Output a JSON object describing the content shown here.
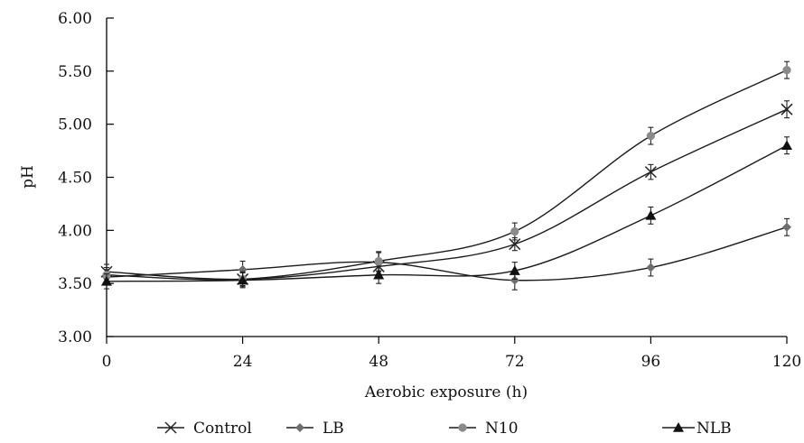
{
  "chart_data": {
    "type": "line",
    "xlabel": "Aerobic exposure (h)",
    "ylabel": "pH",
    "x": [
      0,
      24,
      48,
      72,
      96,
      120
    ],
    "xlim": [
      0,
      120
    ],
    "ylim": [
      3.0,
      6.0
    ],
    "x_ticks": [
      "0",
      "24",
      "48",
      "72",
      "96",
      "120"
    ],
    "y_ticks": [
      "3.00",
      "3.50",
      "4.00",
      "4.50",
      "5.00",
      "5.50",
      "6.00"
    ],
    "grid": false,
    "legend_position": "bottom",
    "series": [
      {
        "name": "Control",
        "marker": "x",
        "color": "#222222",
        "values": [
          3.61,
          3.54,
          3.66,
          3.87,
          4.55,
          5.14
        ],
        "errors": [
          0.07,
          0.06,
          0.07,
          0.06,
          0.07,
          0.08
        ]
      },
      {
        "name": "LB",
        "marker": "diamond",
        "color": "#6e6e6e",
        "values": [
          3.56,
          3.63,
          3.7,
          3.53,
          3.65,
          4.03
        ],
        "errors": [
          0.07,
          0.08,
          0.09,
          0.09,
          0.08,
          0.08
        ]
      },
      {
        "name": "N10",
        "marker": "circle",
        "color": "#8a8a8a",
        "values": [
          3.58,
          3.54,
          3.71,
          3.99,
          4.89,
          5.51
        ],
        "errors": [
          0.07,
          0.07,
          0.09,
          0.08,
          0.08,
          0.08
        ]
      },
      {
        "name": "NLB",
        "marker": "triangle",
        "color": "#111111",
        "values": [
          3.52,
          3.53,
          3.58,
          3.62,
          4.14,
          4.8
        ],
        "errors": [
          0.07,
          0.07,
          0.08,
          0.08,
          0.08,
          0.08
        ]
      }
    ]
  }
}
